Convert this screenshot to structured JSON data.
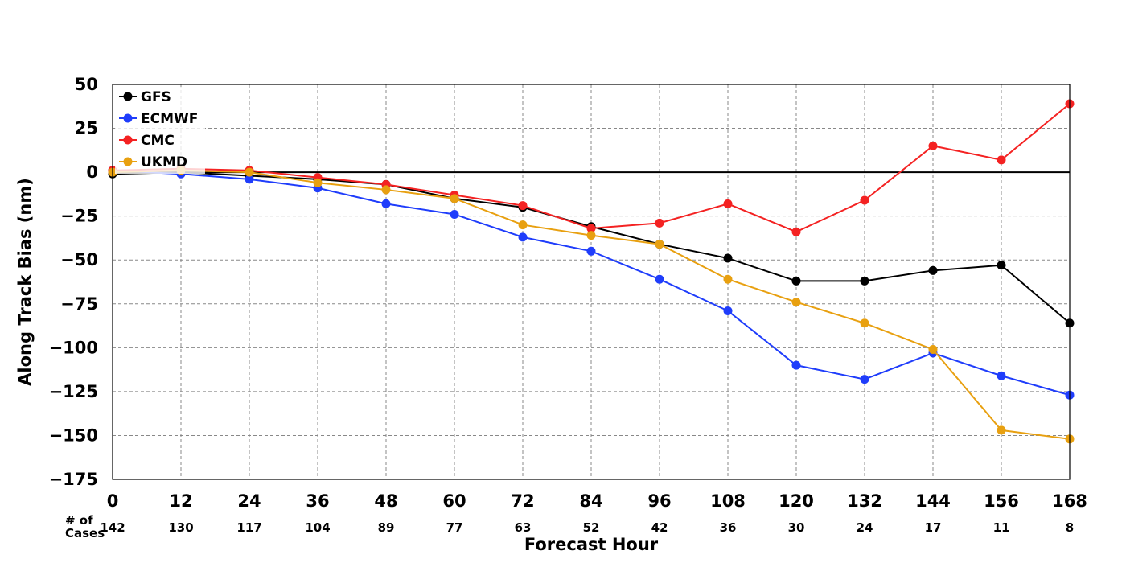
{
  "chart_data": {
    "type": "line",
    "xlabel": "Forecast Hour",
    "ylabel": "Along Track Bias (nm)",
    "x": [
      0,
      12,
      24,
      36,
      48,
      60,
      72,
      84,
      96,
      108,
      120,
      132,
      144,
      156,
      168
    ],
    "xlim": [
      0,
      168
    ],
    "ylim": [
      -175,
      50
    ],
    "yticks": [
      50,
      25,
      0,
      -25,
      -50,
      -75,
      -100,
      -125,
      -150,
      -175
    ],
    "grid": true,
    "legend_position": "top-left",
    "cases_label": "# of\nCases",
    "cases": [
      142,
      130,
      117,
      104,
      89,
      77,
      63,
      52,
      42,
      36,
      30,
      24,
      17,
      11,
      8
    ],
    "series": [
      {
        "name": "GFS",
        "color": "#000000",
        "values": [
          -1,
          0,
          -2,
          -4,
          -7,
          -15,
          -20,
          -31,
          -41,
          -49,
          -62,
          -62,
          -56,
          -53,
          -86
        ]
      },
      {
        "name": "ECMWF",
        "color": "#1f3dfb",
        "values": [
          1,
          -1,
          -4,
          -9,
          -18,
          -24,
          -37,
          -45,
          -61,
          -79,
          -110,
          -118,
          -103,
          -116,
          -127
        ]
      },
      {
        "name": "CMC",
        "color": "#f42222",
        "values": [
          1,
          2,
          1,
          -3,
          -7,
          -13,
          -19,
          -32,
          -29,
          -18,
          -34,
          -16,
          15,
          7,
          39
        ]
      },
      {
        "name": "UKMD",
        "color": "#e8a010",
        "values": [
          0,
          1,
          0,
          -6,
          -10,
          -15,
          -30,
          -36,
          -41,
          -61,
          -74,
          -86,
          -101,
          -147,
          -152
        ]
      }
    ]
  }
}
